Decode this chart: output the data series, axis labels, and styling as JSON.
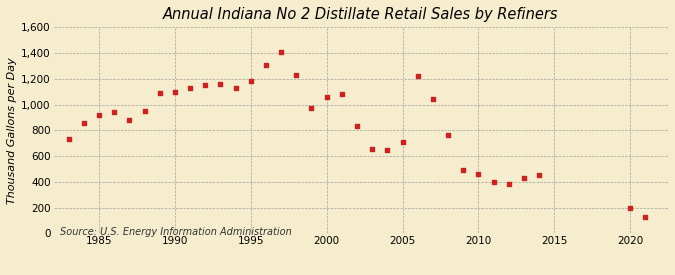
{
  "title": "Annual Indiana No 2 Distillate Retail Sales by Refiners",
  "ylabel": "Thousand Gallons per Day",
  "source": "Source: U.S. Energy Information Administration",
  "background_color": "#f5edcd",
  "plot_bg_color": "#f5edcd",
  "marker_color": "#cc2222",
  "years": [
    1983,
    1984,
    1985,
    1986,
    1987,
    1988,
    1989,
    1990,
    1991,
    1992,
    1993,
    1994,
    1995,
    1996,
    1997,
    1998,
    1999,
    2000,
    2001,
    2002,
    2003,
    2004,
    2005,
    2006,
    2007,
    2008,
    2009,
    2010,
    2011,
    2012,
    2013,
    2014,
    2020,
    2021
  ],
  "values": [
    730,
    855,
    920,
    940,
    880,
    950,
    1090,
    1100,
    1130,
    1150,
    1160,
    1130,
    1180,
    1305,
    1410,
    1230,
    975,
    1060,
    1080,
    835,
    655,
    645,
    710,
    1225,
    1045,
    760,
    490,
    460,
    400,
    385,
    430,
    455,
    195,
    125
  ],
  "ylim": [
    0,
    1600
  ],
  "yticks": [
    0,
    200,
    400,
    600,
    800,
    1000,
    1200,
    1400,
    1600
  ],
  "xticks": [
    1985,
    1990,
    1995,
    2000,
    2005,
    2010,
    2015,
    2020
  ],
  "xlim": [
    1982,
    2022.5
  ],
  "title_fontsize": 10.5,
  "label_fontsize": 8,
  "tick_fontsize": 7.5,
  "source_fontsize": 7
}
